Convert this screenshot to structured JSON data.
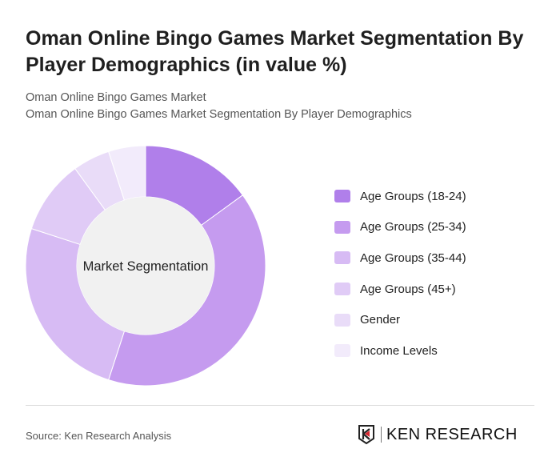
{
  "header": {
    "title": "Oman Online Bingo Games Market Segmentation By Player Demographics (in value %)",
    "subtitle1": "Oman Online Bingo Games Market",
    "subtitle2": "Oman Online Bingo Games Market Segmentation By Player Demographics"
  },
  "chart_data": {
    "type": "pie",
    "variant": "donut",
    "center_label": "Market Segmentation",
    "categories": [
      "Age Groups (18-24)",
      "Age Groups (25-34)",
      "Age Groups (35-44)",
      "Age Groups (45+)",
      "Gender",
      "Income Levels"
    ],
    "values": [
      15,
      40,
      25,
      10,
      5,
      5
    ],
    "colors": [
      "#b07fea",
      "#c59bef",
      "#d7bbf4",
      "#e0cbf6",
      "#e9dcf8",
      "#f2ebfb"
    ],
    "legend_position": "right"
  },
  "footer": {
    "source": "Source: Ken Research Analysis",
    "logo_text": "KEN RESEARCH"
  }
}
